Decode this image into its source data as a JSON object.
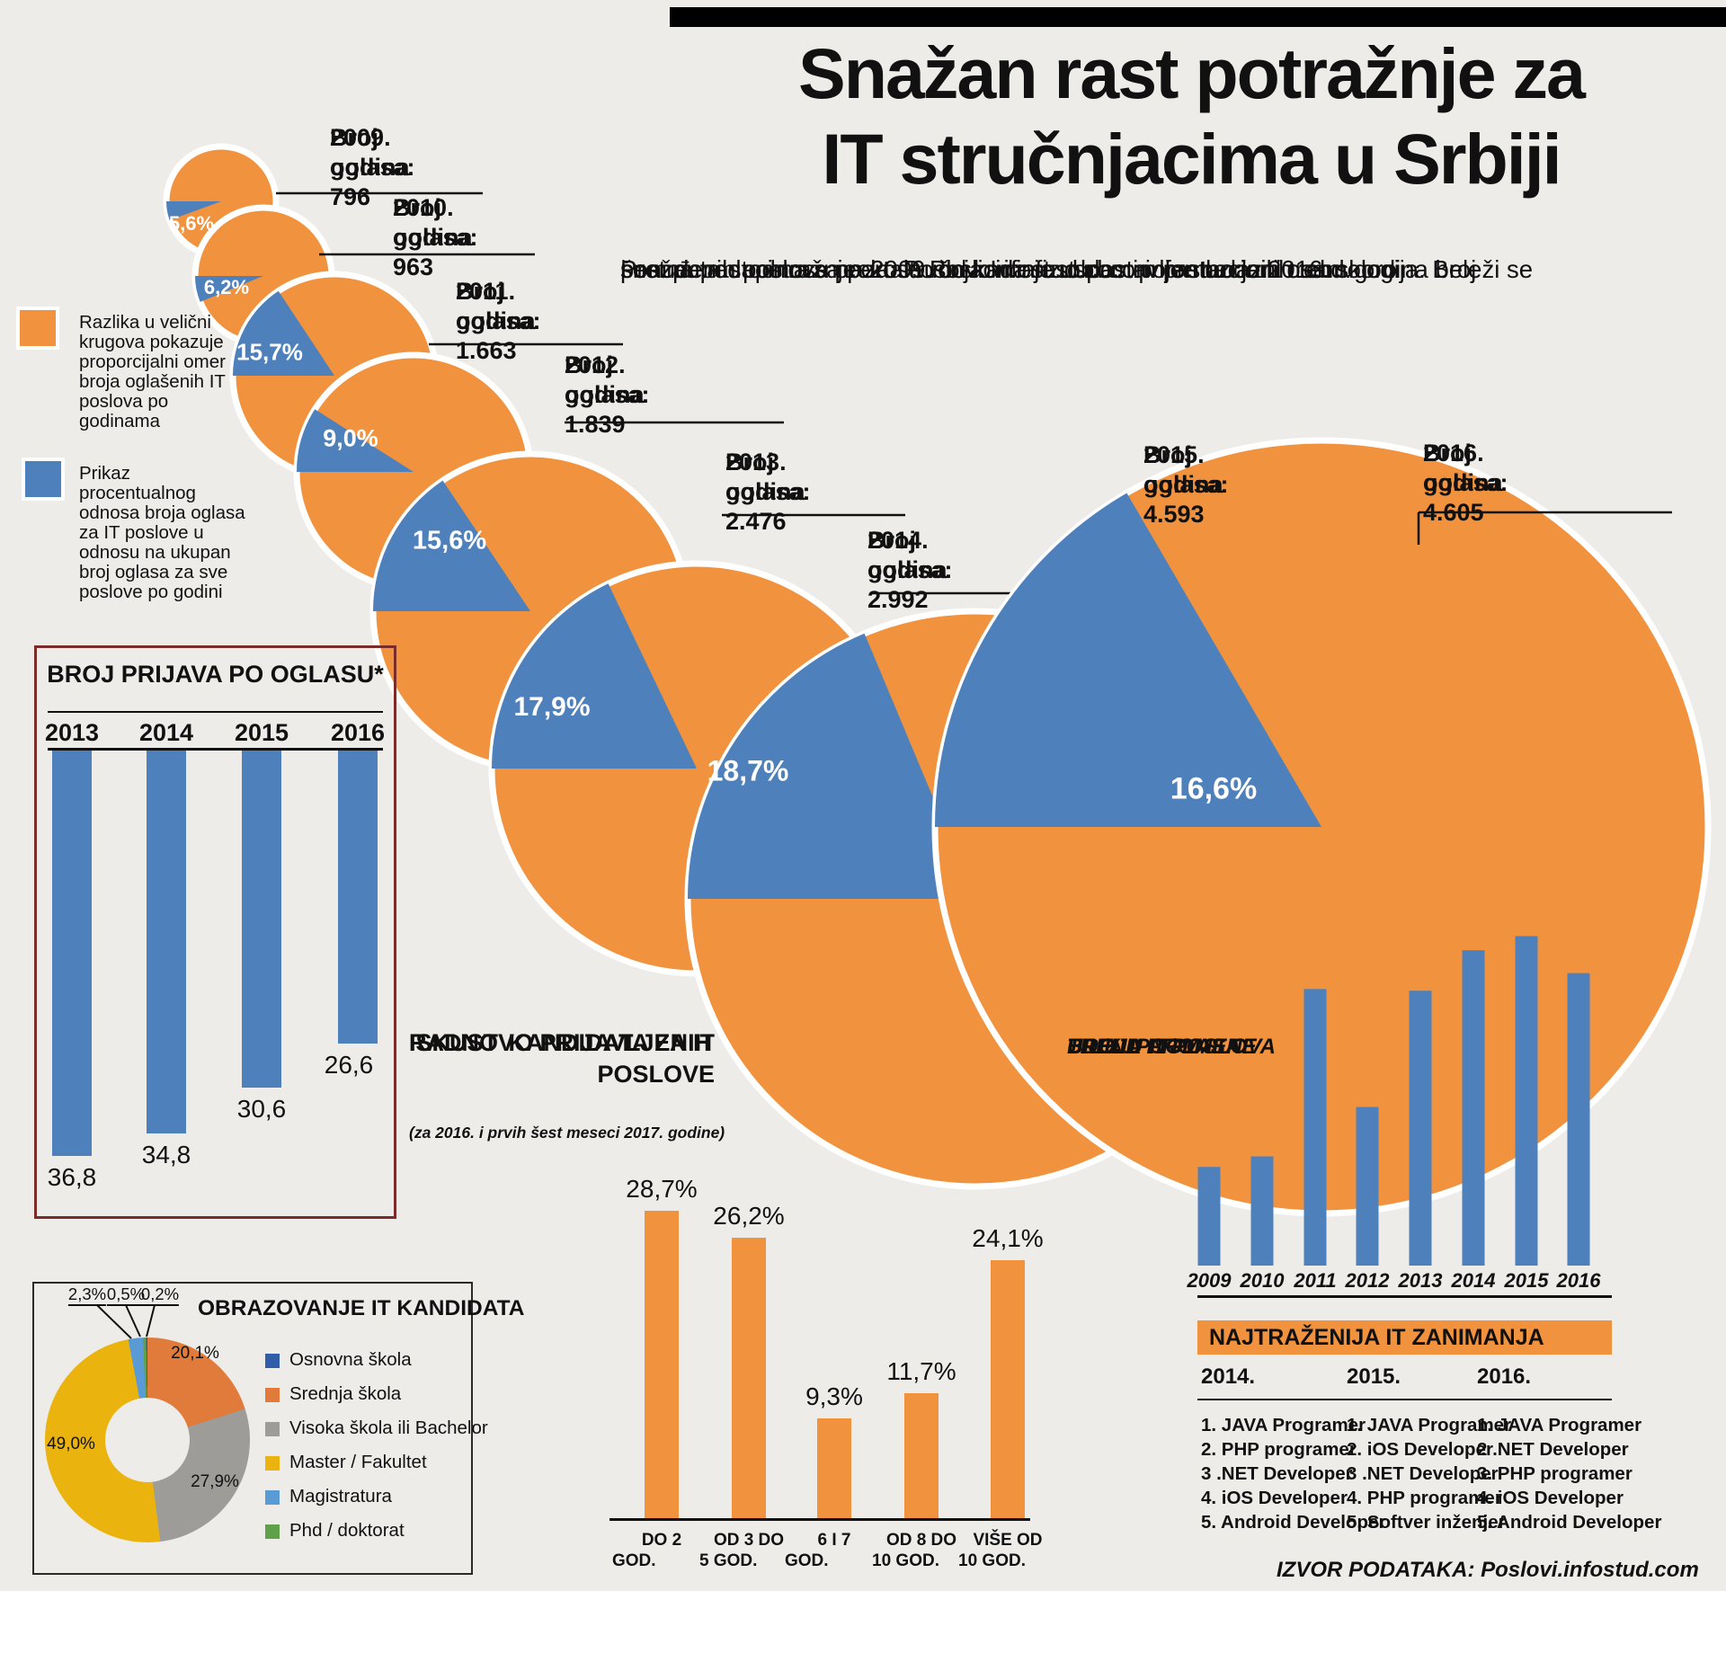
{
  "header": {
    "title_line1": "Snažan rast potražnje za",
    "title_line2": "IT stručnjacima u Srbiji",
    "intro_lines": [
      "Prema podacima sa portala Poslovi.infostud.com prethodnih osam godina beleži se",
      "snažan rast potražnje za stručnjacima iz oblasti informacionih tehnologija. Broj",
      "ponuđenih poslova preko Poslovi.Infostud.com porastao je 2016. skoro",
      "šest puta u odnosu na 2009. od kada je uspostavljen uzlazni trend."
    ]
  },
  "legend": {
    "orange_text": "Razlika u velični krugova pokazuje proporcijalni omer broja oglašenih IT poslova po godinama",
    "blue_text": "Prikaz procentualnog odnosa broja oglasa za IT poslove u odnosu na ukupan broj oglasa za sve poslove po godini"
  },
  "colors": {
    "orange": "#F0923E",
    "blue": "#4E81BC",
    "background": "#EDECE9",
    "box_border_maroon": "#7B2B28"
  },
  "chart_data": [
    {
      "type": "pie",
      "name": "it-oglasi-po-godinama",
      "title": "Broj oglašenih IT poslova po godinama i procenat IT oglasa u ukupnom broju oglasa",
      "series": [
        {
          "year": "2009",
          "year_label": "2009. godina",
          "oglasi_label": "Broj oglasa: 796",
          "broj_oglasa": 796,
          "it_share_pct": 5.6,
          "pct_label": "5,6%"
        },
        {
          "year": "2010",
          "year_label": "2010. godina",
          "oglasi_label": "Broj oglasa: 963",
          "broj_oglasa": 963,
          "it_share_pct": 6.2,
          "pct_label": "6,2%"
        },
        {
          "year": "2011",
          "year_label": "2011. godina",
          "oglasi_label": "Broj oglasa: 1.663",
          "broj_oglasa": 1663,
          "it_share_pct": 15.7,
          "pct_label": "15,7%"
        },
        {
          "year": "2012",
          "year_label": "2012. godina",
          "oglasi_label": "Broj oglasa: 1.839",
          "broj_oglasa": 1839,
          "it_share_pct": 9.0,
          "pct_label": "9,0%"
        },
        {
          "year": "2013",
          "year_label": "2013. godina",
          "oglasi_label": "Broj oglasa: 2.476",
          "broj_oglasa": 2476,
          "it_share_pct": 15.6,
          "pct_label": "15,6%"
        },
        {
          "year": "2014",
          "year_label": "2014. godina",
          "oglasi_label": "Broj oglasa: 2.992",
          "broj_oglasa": 2992,
          "it_share_pct": 17.9,
          "pct_label": "17,9%"
        },
        {
          "year": "2015",
          "year_label": "2015. godina",
          "oglasi_label": "Broj oglasa: 4.593",
          "broj_oglasa": 4593,
          "it_share_pct": 18.7,
          "pct_label": "18,7%"
        },
        {
          "year": "2016",
          "year_label": "2016. godina",
          "oglasi_label": "Broj oglasa: 4.605",
          "broj_oglasa": 4605,
          "it_share_pct": 16.6,
          "pct_label": "16,6%"
        }
      ]
    },
    {
      "type": "bar",
      "name": "broj-prijava-po-oglasu",
      "title": "BROJ PRIJAVA PO OGLASU*",
      "categories": [
        "2013",
        "2014",
        "2015",
        "2016"
      ],
      "values": [
        36.8,
        34.8,
        30.6,
        26.6
      ],
      "value_labels": [
        "36,8",
        "34,8",
        "30,6",
        "26,6"
      ]
    },
    {
      "type": "pie",
      "name": "obrazovanje-it-kandidata",
      "title": "OBRAZOVANJE IT KANDIDATA",
      "slices": [
        {
          "label": "Osnovna  škola",
          "pct": 0.2,
          "pct_label": "0,2%",
          "color": "#2F5DA8"
        },
        {
          "label": "Srednja škola",
          "pct": 20.1,
          "pct_label": "20,1%",
          "color": "#E07B3B"
        },
        {
          "label": "Visoka škola ili Bachelor",
          "pct": 27.9,
          "pct_label": "27,9%",
          "color": "#9E9C99"
        },
        {
          "label": "Master / Fakultet",
          "pct": 49.0,
          "pct_label": "49,0%",
          "color": "#EAB30E"
        },
        {
          "label": "Magistratura",
          "pct": 2.3,
          "pct_label": "2,3%",
          "color": "#5B9BD5"
        },
        {
          "label": "Phd / doktorat",
          "pct": 0.5,
          "pct_label": "0,5%",
          "color": "#5FA049"
        }
      ]
    },
    {
      "type": "bar",
      "name": "radno-iskustvo",
      "title_lines": [
        "RADNO",
        "ISKUSTVO PRIJAVLJENIH",
        "KANDIDATA ZA IT POSLOVE"
      ],
      "subtitle": "(za 2016. i prvih šest meseci 2017. godine)",
      "categories": [
        [
          "DO 2",
          "GOD."
        ],
        [
          "OD 3 DO",
          "5 GOD."
        ],
        [
          "6 I 7",
          "GOD."
        ],
        [
          "OD 8 DO",
          "10 GOD."
        ],
        [
          "VIŠE OD",
          "10 GOD."
        ]
      ],
      "values": [
        28.7,
        26.2,
        9.3,
        11.7,
        24.1
      ],
      "value_labels": [
        "28,7%",
        "26,2%",
        "9,3%",
        "11,7%",
        "24,1%"
      ]
    },
    {
      "type": "bar",
      "name": "trend-udela-it-poslova",
      "title_lines": [
        "TREND PROMENE",
        "UDELA IT POSLOVA",
        "U UKUPNOM",
        "BROJU OGLASA"
      ],
      "categories": [
        "2009",
        "2010",
        "2011",
        "2012",
        "2013",
        "2014",
        "2015",
        "2016"
      ],
      "values": [
        5.6,
        6.2,
        15.7,
        9.0,
        15.6,
        17.9,
        18.7,
        16.6
      ]
    }
  ],
  "zanimanja": {
    "header": "NAJTRAŽENIJA IT ZANIMANJA",
    "columns": [
      {
        "year": "2014.",
        "items": [
          "1. JAVA Programer",
          "2. PHP programer",
          "3 .NET Developer",
          "4. iOS Developer",
          "5. Android Developer"
        ]
      },
      {
        "year": "2015.",
        "items": [
          "1. JAVA Programer",
          "2. iOS Developer",
          "3 .NET Developer",
          "4. PHP programer",
          "5. Softver inženjer"
        ]
      },
      {
        "year": "2016.",
        "items": [
          "1. JAVA Programer",
          "2 .NET Developer",
          "3. PHP programer",
          "4. iOS Developer",
          "5. Android Developer"
        ]
      }
    ]
  },
  "footer": {
    "source": "IZVOR PODATAKA: Poslovi.infostud.com"
  }
}
